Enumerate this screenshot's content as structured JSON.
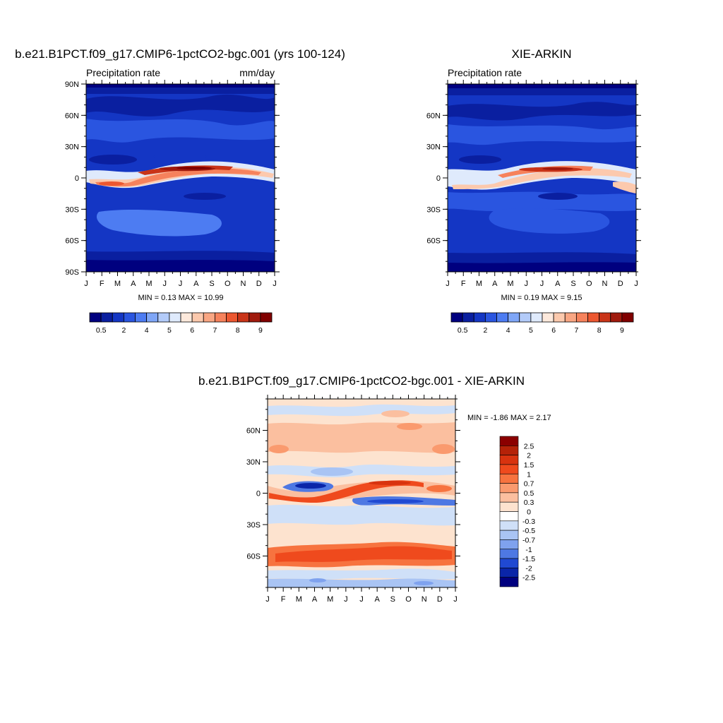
{
  "chart_data": [
    {
      "type": "heatmap",
      "title": "b.e21.B1PCT.f09_g17.CMIP6-1pctCO2-bgc.001 (yrs 100-124)",
      "subtitle_left": "Precipitation rate",
      "subtitle_right": "mm/day",
      "x_ticks": [
        "J",
        "F",
        "M",
        "A",
        "M",
        "J",
        "J",
        "A",
        "S",
        "O",
        "N",
        "D",
        "J"
      ],
      "y_ticks": [
        "90N",
        "60N",
        "30N",
        "0",
        "30S",
        "60S",
        "90S"
      ],
      "stats": "MIN =   0.13 MAX =  10.99",
      "colorbar": {
        "orientation": "horizontal",
        "labels": [
          "0.5",
          "2",
          "4",
          "5",
          "6",
          "7",
          "8",
          "9"
        ],
        "colors": [
          "#00007f",
          "#0a1fa0",
          "#1436c4",
          "#2a55e0",
          "#4d7cf2",
          "#7fa6f7",
          "#b3cbf9",
          "#dfeafc",
          "#fde9dc",
          "#fcc9ad",
          "#f9a683",
          "#f6825c",
          "#ec5730",
          "#c93418",
          "#a01a0d",
          "#800000"
        ]
      },
      "ylim": [
        -90,
        90
      ]
    },
    {
      "type": "heatmap",
      "title": "XIE-ARKIN",
      "subtitle_left": "Precipitation rate",
      "x_ticks": [
        "J",
        "F",
        "M",
        "A",
        "M",
        "J",
        "J",
        "A",
        "S",
        "O",
        "N",
        "D",
        "J"
      ],
      "y_ticks": [
        "60N",
        "30N",
        "0",
        "30S",
        "60S"
      ],
      "stats": "MIN =   0.19 MAX =   9.15",
      "colorbar": {
        "orientation": "horizontal",
        "labels": [
          "0.5",
          "2",
          "4",
          "5",
          "6",
          "7",
          "8",
          "9"
        ],
        "colors": [
          "#00007f",
          "#0a1fa0",
          "#1436c4",
          "#2a55e0",
          "#4d7cf2",
          "#7fa6f7",
          "#b3cbf9",
          "#dfeafc",
          "#fde9dc",
          "#fcc9ad",
          "#f9a683",
          "#f6825c",
          "#ec5730",
          "#c93418",
          "#a01a0d",
          "#800000"
        ]
      },
      "ylim": [
        -90,
        90
      ]
    },
    {
      "type": "heatmap",
      "title": "b.e21.B1PCT.f09_g17.CMIP6-1pctCO2-bgc.001 - XIE-ARKIN",
      "x_ticks": [
        "J",
        "F",
        "M",
        "A",
        "M",
        "J",
        "J",
        "A",
        "S",
        "O",
        "N",
        "D",
        "J"
      ],
      "y_ticks": [
        "60N",
        "30N",
        "0",
        "30S",
        "60S"
      ],
      "stats": "MIN =  -1.86 MAX =   2.17",
      "colorbar": {
        "orientation": "vertical",
        "labels": [
          "2.5",
          "2",
          "1.5",
          "1",
          "0.7",
          "0.5",
          "0.3",
          "0",
          "-0.3",
          "-0.5",
          "-0.7",
          "-1",
          "-1.5",
          "-2",
          "-2.5"
        ],
        "colors": [
          "#8b0000",
          "#b52208",
          "#d8330f",
          "#ef4a1d",
          "#f7733f",
          "#fa9a6e",
          "#fbbf9f",
          "#fde3cf",
          "#ffffff",
          "#cfe0f8",
          "#a9c4f4",
          "#7fa2ee",
          "#4e78e3",
          "#2049d2",
          "#0a25a8",
          "#00007f"
        ]
      },
      "ylim": [
        -90,
        90
      ]
    }
  ]
}
